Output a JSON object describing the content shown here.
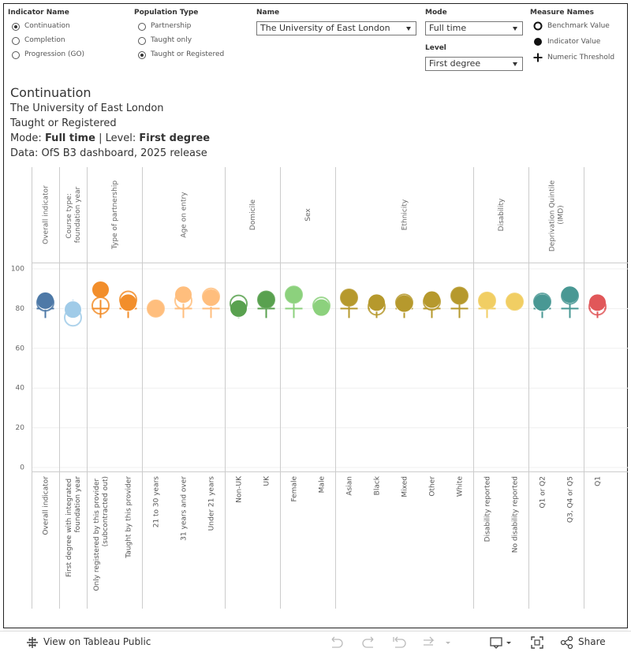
{
  "controls": {
    "indicator_name": {
      "label": "Indicator Name",
      "options": [
        "Continuation",
        "Completion",
        "Progression (GO)"
      ],
      "selected": "Continuation"
    },
    "population_type": {
      "label": "Population Type",
      "options": [
        "Partnership",
        "Taught only",
        "Taught or Registered"
      ],
      "selected": "Taught or Registered"
    },
    "name": {
      "label": "Name",
      "value": "The University of East London"
    },
    "mode": {
      "label": "Mode",
      "value": "Full time"
    },
    "level": {
      "label": "Level",
      "value": "First degree"
    }
  },
  "header": {
    "title": "Continuation",
    "provider": "The University of East London",
    "population": "Taught or Registered",
    "mode_label": "Mode:",
    "mode_value": "Full time",
    "level_label": "| Level:",
    "level_value": "First degree",
    "source": "Data: OfS B3 dashboard, 2025 release"
  },
  "chart_data": {
    "type": "dot",
    "legend_title": "Measure Names",
    "groups": [
      {
        "name": "Overall indicator",
        "color": "#4e79a7",
        "categories": [
          "Overall indicator"
        ]
      },
      {
        "name": "Course type: foundation year",
        "color": "#a0cbe8",
        "categories": [
          "First degree with integrated foundation year"
        ]
      },
      {
        "name": "Type of partnership",
        "color": "#f28e2b",
        "categories": [
          "Only registered by this provider (subcontracted out)",
          "Taught by this provider"
        ]
      },
      {
        "name": "Age on entry",
        "color": "#ffbe7d",
        "categories": [
          "21 to 30 years",
          "31 years and over",
          "Under 21 years"
        ]
      },
      {
        "name": "Domicile",
        "color": "#59a14f",
        "categories": [
          "Non-UK",
          "UK"
        ]
      },
      {
        "name": "Sex",
        "color": "#8cd17d",
        "categories": [
          "Female",
          "Male"
        ]
      },
      {
        "name": "Ethnicity",
        "color": "#b6992d",
        "categories": [
          "Asian",
          "Black",
          "Mixed",
          "Other",
          "White"
        ]
      },
      {
        "name": "Disability",
        "color": "#f1ce63",
        "categories": [
          "Disability reported",
          "No disability reported"
        ]
      },
      {
        "name": "Deprivation Quintile (IMD)",
        "color": "#499894",
        "categories": [
          "Q1 or Q2",
          "Q3, Q4 or Q5"
        ]
      },
      {
        "name": null,
        "color": "#e15759",
        "categories": [
          "Q1"
        ]
      }
    ],
    "series": [
      {
        "name": "Benchmark Value",
        "values": [
          83,
          75.5,
          81.5,
          84.5,
          80,
          84,
          86,
          82.5,
          84.5,
          87,
          81.5,
          85.5,
          81,
          83,
          83.5,
          86.5,
          84,
          83.5,
          83.5,
          86.5,
          81
        ]
      },
      {
        "name": "Indicator Value",
        "values": [
          84,
          79.5,
          89.5,
          83,
          80,
          87,
          85.5,
          80,
          84.5,
          87,
          80.5,
          85.5,
          83,
          82.5,
          84.5,
          86.5,
          84,
          83.5,
          83,
          87,
          83
        ]
      },
      {
        "name": "Numeric Threshold",
        "values": [
          80,
          80,
          80,
          80,
          null,
          80,
          80,
          80,
          80,
          80,
          null,
          80,
          80,
          80,
          80,
          80,
          80,
          null,
          80,
          80,
          80
        ]
      }
    ],
    "ylim": [
      0,
      100
    ],
    "yticks": [
      0,
      20,
      40,
      60,
      80,
      100
    ],
    "grid": true
  },
  "toolbar": {
    "view": "View on Tableau Public",
    "share": "Share"
  }
}
